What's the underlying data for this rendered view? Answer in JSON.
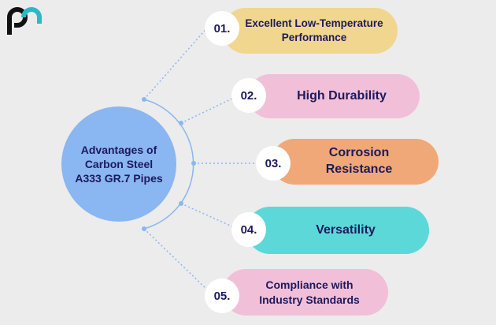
{
  "center": {
    "title": "Advantages of Carbon Steel A333 GR.7 Pipes"
  },
  "items": [
    {
      "number": "01.",
      "label": "Excellent Low-Temperature Performance"
    },
    {
      "number": "02.",
      "label": "High Durability"
    },
    {
      "number": "03.",
      "label": "Corrosion Resistance"
    },
    {
      "number": "04.",
      "label": "Versatility"
    },
    {
      "number": "05.",
      "label": "Compliance with Industry Standards"
    }
  ]
}
